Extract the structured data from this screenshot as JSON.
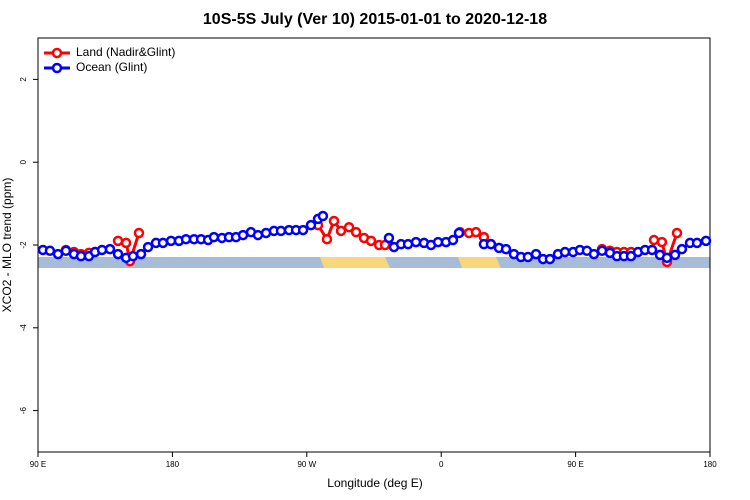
{
  "chart_data": {
    "type": "line",
    "title": "10S-5S July (Ver 10)   2015-01-01 to 2020-12-18",
    "xlabel": "Longitude (deg E)",
    "ylabel": "XCO2 - MLO trend (ppm)",
    "xlim": [
      90,
      540
    ],
    "xticks": [
      {
        "value": 90,
        "label": "90 E"
      },
      {
        "value": 180,
        "label": "180"
      },
      {
        "value": 270,
        "label": "90 W"
      },
      {
        "value": 360,
        "label": "0"
      },
      {
        "value": 450,
        "label": "90 E"
      },
      {
        "value": 540,
        "label": "180"
      }
    ],
    "ylim": [
      -7,
      3
    ],
    "yticks": [
      -6,
      -4,
      -2,
      0,
      2
    ],
    "legend": "top-left",
    "series": [
      {
        "name": "Land (Nadir&Glint)",
        "color": "#ff0000",
        "x": [
          108.7,
          114.1,
          118.8,
          124.1,
          128.2,
          136.0,
          143.6,
          149.0,
          151.6,
          157.6,
          220.0,
          277.5,
          283.5,
          288.2,
          292.9,
          298.3,
          303.0,
          308.3,
          313.0,
          318.4,
          322.4,
          350.0,
          372.6,
          378.6,
          383.3,
          388.6,
          393.3,
          430.0,
          467.7,
          473.0,
          477.7,
          482.4,
          487.1,
          495.0,
          502.5,
          507.8,
          511.2,
          517.9
        ],
        "values": [
          -2.12,
          -2.17,
          -2.22,
          -2.19,
          -2.17,
          null,
          -1.9,
          -1.95,
          -2.39,
          -1.71,
          null,
          -1.52,
          -1.86,
          -1.42,
          -1.66,
          -1.57,
          -1.69,
          -1.83,
          -1.9,
          -2.0,
          -2.0,
          null,
          -1.69,
          -1.71,
          -1.69,
          -1.81,
          -1.98,
          null,
          -2.1,
          -2.14,
          -2.17,
          -2.17,
          -2.17,
          null,
          -1.88,
          -1.93,
          -2.41,
          -1.71
        ]
      },
      {
        "name": "Ocean (Glint)",
        "color": "#0000ff",
        "x": [
          93.3,
          98.0,
          103.4,
          108.7,
          114.1,
          118.8,
          124.1,
          128.2,
          132.9,
          138.2,
          143.6,
          149.0,
          153.6,
          159.0,
          163.7,
          169.0,
          173.7,
          179.1,
          184.4,
          189.1,
          194.5,
          199.2,
          203.9,
          207.8,
          213.2,
          217.9,
          222.6,
          227.3,
          232.6,
          237.3,
          242.7,
          248.0,
          252.7,
          258.1,
          262.8,
          267.5,
          272.8,
          277.5,
          280.8,
          303.0,
          325.0,
          328.4,
          333.1,
          337.8,
          343.1,
          348.5,
          353.2,
          357.9,
          363.2,
          367.9,
          371.9,
          380.0,
          388.6,
          393.3,
          398.7,
          403.4,
          408.7,
          413.4,
          418.1,
          423.5,
          428.2,
          432.8,
          438.2,
          442.9,
          448.3,
          452.9,
          457.6,
          462.3,
          467.7,
          473.0,
          477.7,
          482.4,
          487.1,
          491.8,
          496.5,
          501.2,
          506.5,
          511.2,
          516.6,
          521.2,
          526.6,
          531.3,
          537.3
        ],
        "values": [
          -2.12,
          -2.14,
          -2.22,
          -2.14,
          -2.22,
          -2.27,
          -2.27,
          -2.17,
          -2.12,
          -2.1,
          -2.22,
          -2.31,
          -2.27,
          -2.22,
          -2.05,
          -1.95,
          -1.95,
          -1.9,
          -1.9,
          -1.86,
          -1.86,
          -1.86,
          -1.88,
          -1.81,
          -1.83,
          -1.81,
          -1.81,
          -1.76,
          -1.69,
          -1.76,
          -1.71,
          -1.66,
          -1.66,
          -1.64,
          -1.64,
          -1.64,
          -1.52,
          -1.37,
          -1.3,
          null,
          -1.83,
          -2.05,
          -1.98,
          -1.98,
          -1.93,
          -1.95,
          -2.0,
          -1.93,
          -1.93,
          -1.88,
          -1.71,
          null,
          -1.98,
          -1.98,
          -2.07,
          -2.1,
          -2.22,
          -2.29,
          -2.29,
          -2.22,
          -2.34,
          -2.34,
          -2.22,
          -2.17,
          -2.17,
          -2.12,
          -2.14,
          -2.22,
          -2.14,
          -2.19,
          -2.27,
          -2.27,
          -2.27,
          -2.17,
          -2.12,
          -2.12,
          -2.24,
          -2.31,
          -2.24,
          -2.1,
          -1.95,
          -1.95,
          -1.9
        ]
      }
    ]
  }
}
